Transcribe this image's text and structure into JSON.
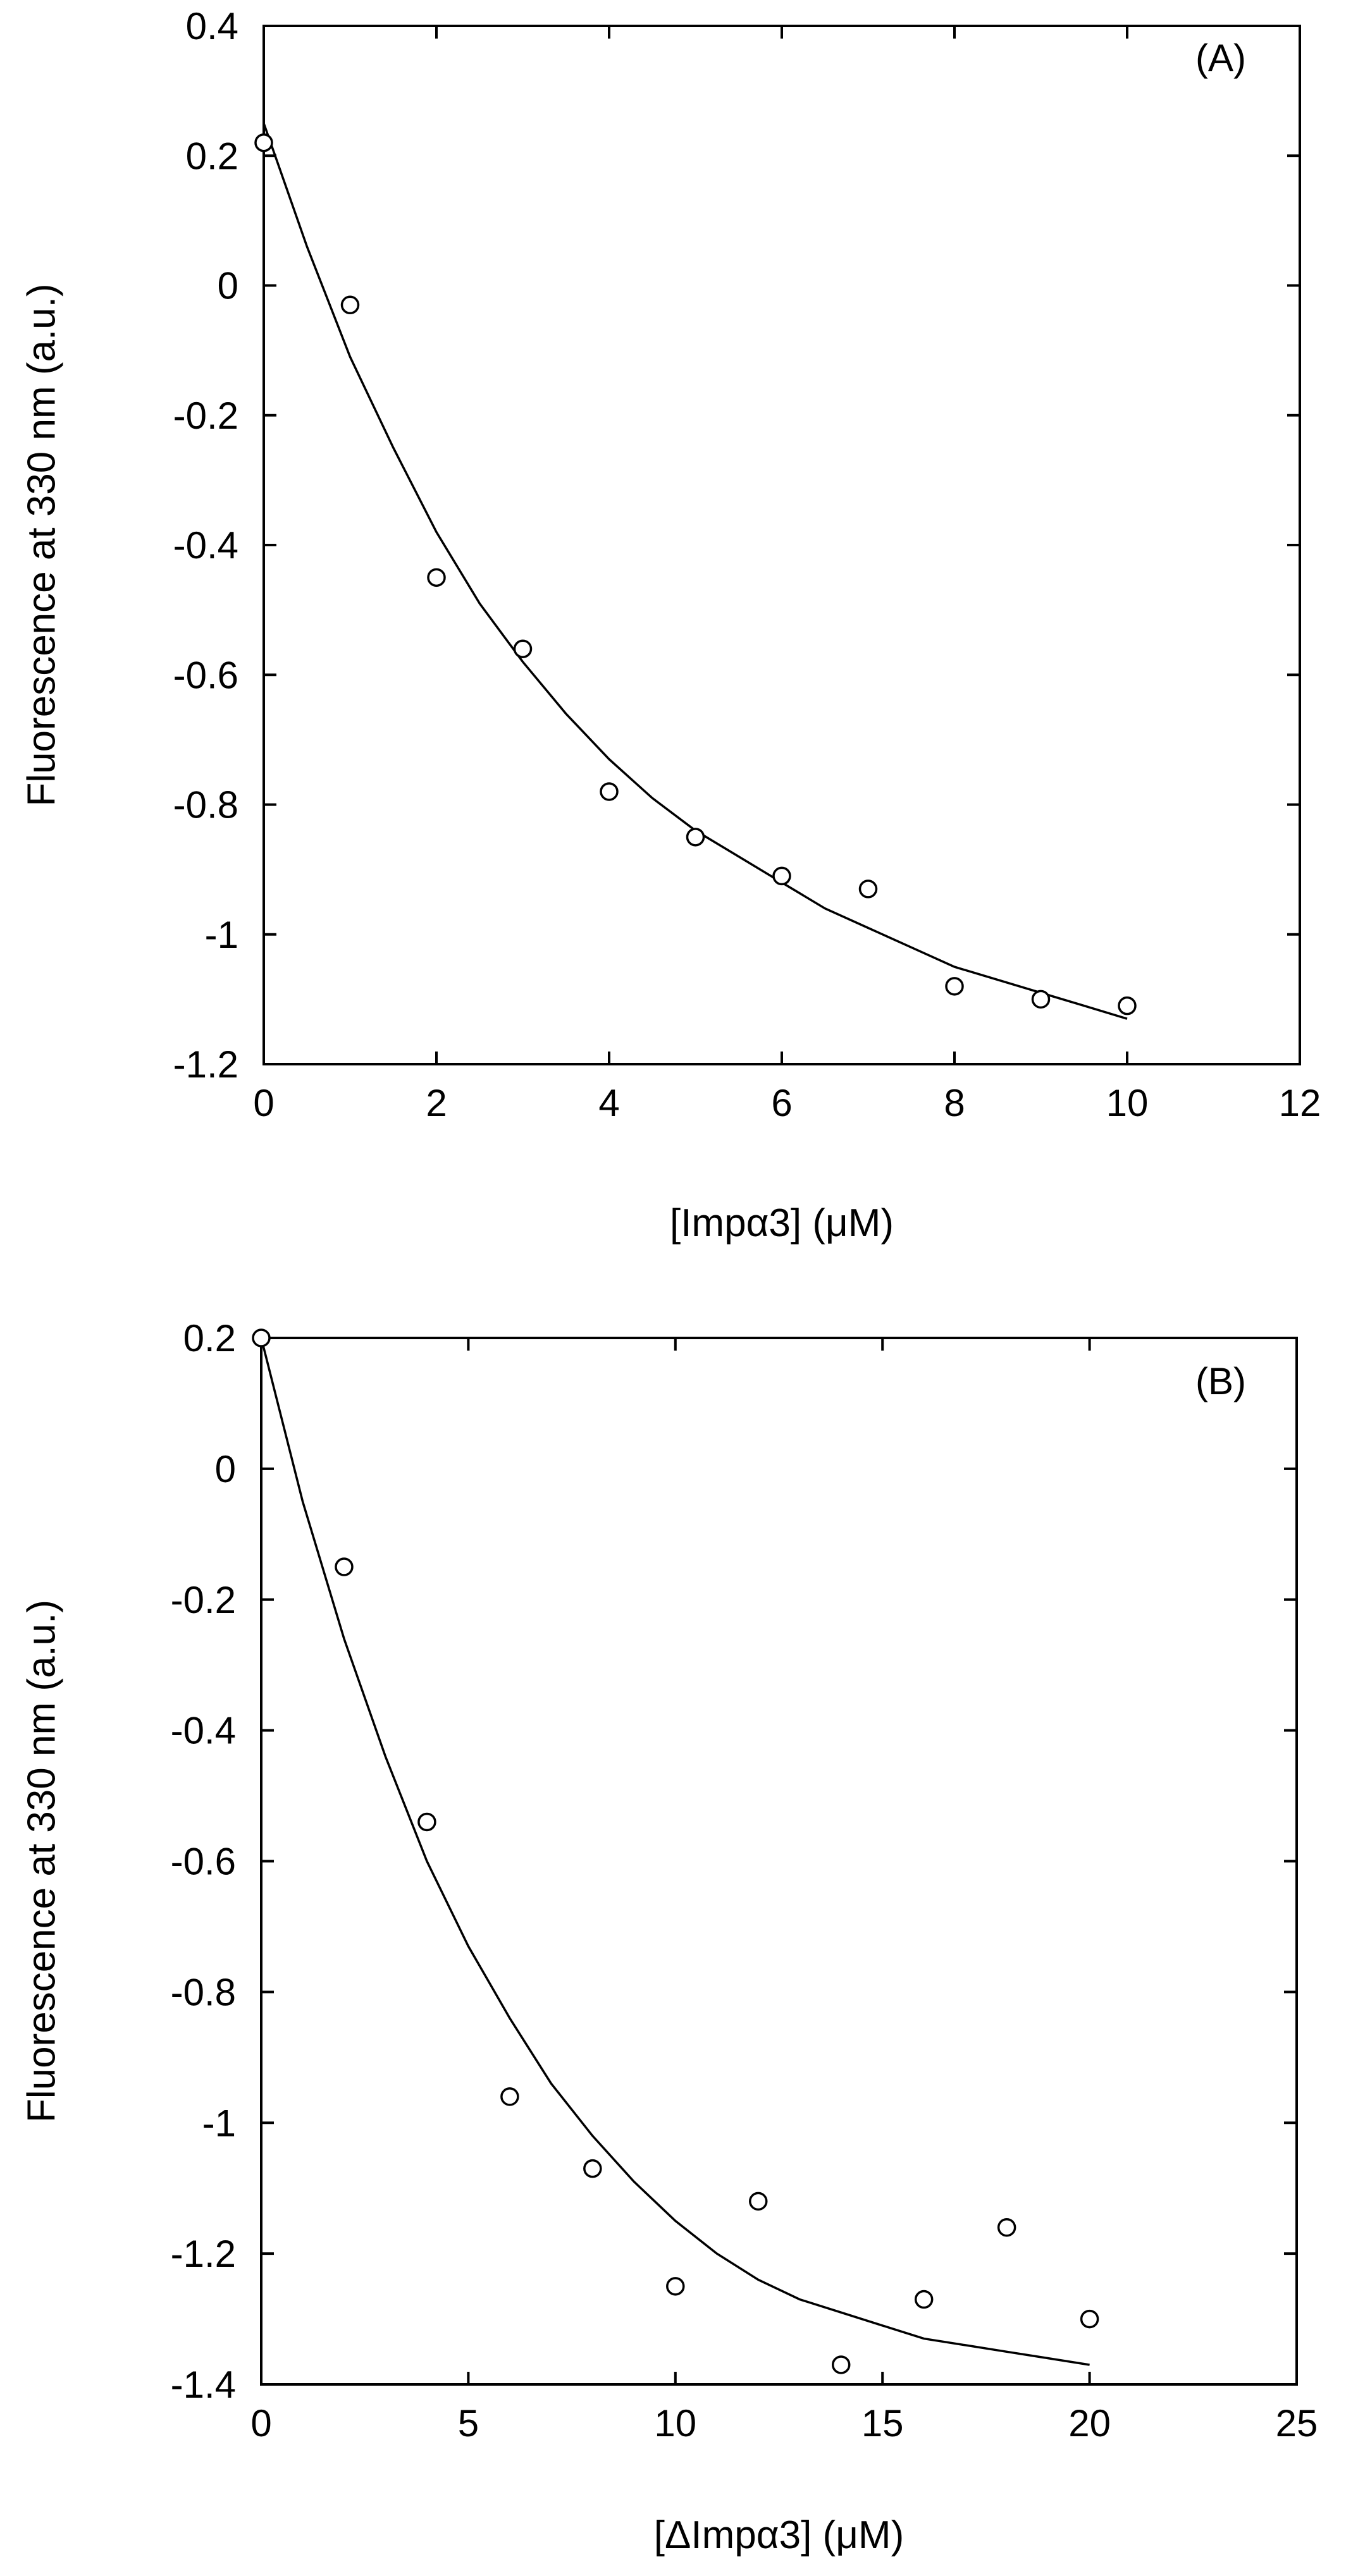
{
  "chart_data": [
    {
      "type": "scatter",
      "panel_label": "(A)",
      "xlabel": "[Impα3] (μM)",
      "ylabel": "Fluorescence at 330 nm (a.u.)",
      "xlim": [
        0,
        12
      ],
      "ylim": [
        -1.2,
        0.4
      ],
      "xticks": [
        0,
        2,
        4,
        6,
        8,
        10,
        12
      ],
      "xtick_labels": [
        "0",
        "2",
        "4",
        "6",
        "8",
        "10",
        "12"
      ],
      "yticks": [
        -1.2,
        -1.0,
        -0.8,
        -0.6,
        -0.4,
        -0.2,
        0,
        0.2,
        0.4
      ],
      "ytick_labels": [
        "-1.2",
        "-1",
        "-0.8",
        "-0.6",
        "-0.4",
        "-0.2",
        "0",
        "0.2",
        "0.4"
      ],
      "points": {
        "x": [
          0,
          1,
          2,
          3,
          4,
          5,
          6,
          7,
          8,
          9,
          10
        ],
        "y": [
          0.22,
          -0.03,
          -0.45,
          -0.56,
          -0.78,
          -0.85,
          -0.91,
          -0.93,
          -1.08,
          -1.1,
          -1.11
        ]
      },
      "fit_curve": {
        "x": [
          0,
          0.5,
          1,
          1.5,
          2,
          2.5,
          3,
          3.5,
          4,
          4.5,
          5,
          5.5,
          6,
          6.5,
          7,
          7.5,
          8,
          8.5,
          9,
          9.5,
          10
        ],
        "y": [
          0.25,
          0.06,
          -0.11,
          -0.25,
          -0.38,
          -0.49,
          -0.58,
          -0.66,
          -0.73,
          -0.79,
          -0.84,
          -0.88,
          -0.92,
          -0.96,
          -0.99,
          -1.02,
          -1.05,
          -1.07,
          -1.09,
          -1.11,
          -1.13
        ]
      },
      "grid": false,
      "legend": "none"
    },
    {
      "type": "scatter",
      "panel_label": "(B)",
      "xlabel": "[ΔImpα3] (μM)",
      "ylabel": "Fluorescence at 330 nm (a.u.)",
      "xlim": [
        0,
        25
      ],
      "ylim": [
        -1.4,
        0.2
      ],
      "xticks": [
        0,
        5,
        10,
        15,
        20,
        25
      ],
      "xtick_labels": [
        "0",
        "5",
        "10",
        "15",
        "20",
        "25"
      ],
      "yticks": [
        -1.4,
        -1.2,
        -1.0,
        -0.8,
        -0.6,
        -0.4,
        -0.2,
        0,
        0.2
      ],
      "ytick_labels": [
        "-1.4",
        "-1.2",
        "-1",
        "-0.8",
        "-0.6",
        "-0.4",
        "-0.2",
        "0",
        "0.2"
      ],
      "points": {
        "x": [
          0,
          2,
          4,
          6,
          8,
          10,
          12,
          14,
          16,
          18,
          20
        ],
        "y": [
          0.2,
          -0.15,
          -0.54,
          -0.96,
          -1.07,
          -1.25,
          -1.12,
          -1.37,
          -1.27,
          -1.16,
          -1.3
        ]
      },
      "fit_curve": {
        "x": [
          0,
          1,
          2,
          3,
          4,
          5,
          6,
          7,
          8,
          9,
          10,
          11,
          12,
          13,
          14,
          15,
          16,
          17,
          18,
          19,
          20
        ],
        "y": [
          0.2,
          -0.05,
          -0.26,
          -0.44,
          -0.6,
          -0.73,
          -0.84,
          -0.94,
          -1.02,
          -1.09,
          -1.15,
          -1.2,
          -1.24,
          -1.27,
          -1.29,
          -1.31,
          -1.33,
          -1.34,
          -1.35,
          -1.36,
          -1.37
        ]
      },
      "grid": false,
      "legend": "none"
    }
  ]
}
